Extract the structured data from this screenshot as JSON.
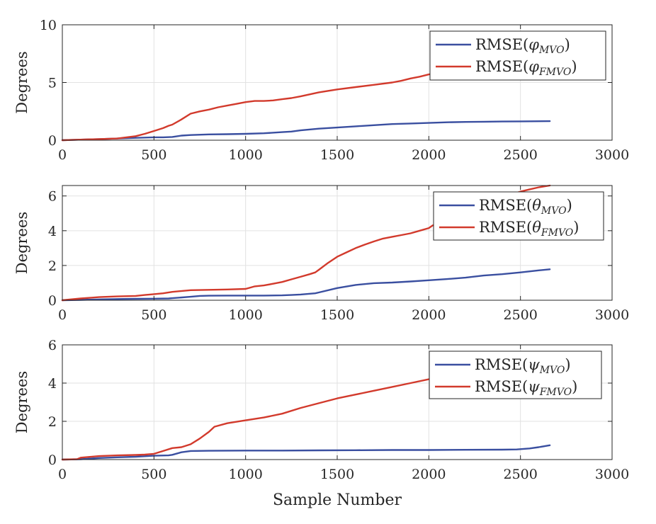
{
  "figure": {
    "xlabel": "Sample Number"
  },
  "chart_data": [
    {
      "type": "line",
      "ylabel": "Degrees",
      "xlim": [
        0,
        3000
      ],
      "ylim": [
        0,
        10
      ],
      "xticks": [
        0,
        500,
        1000,
        1500,
        2000,
        2500,
        3000
      ],
      "yticks": [
        0,
        5,
        10
      ],
      "grid": true,
      "legend_position": "top-right",
      "series": [
        {
          "name": "RMSE(φ_MVO)",
          "legend_prefix": "RMSE(",
          "legend_symbol": "φ",
          "legend_sub": "MVO",
          "legend_suffix": ")",
          "color": "#3a4fa0",
          "x": [
            0,
            100,
            200,
            300,
            400,
            500,
            550,
            600,
            650,
            700,
            800,
            900,
            1000,
            1100,
            1200,
            1250,
            1300,
            1400,
            1500,
            1600,
            1700,
            1800,
            1900,
            2000,
            2100,
            2200,
            2300,
            2400,
            2500,
            2660
          ],
          "y": [
            0,
            0.05,
            0.1,
            0.15,
            0.2,
            0.25,
            0.25,
            0.28,
            0.4,
            0.45,
            0.5,
            0.52,
            0.55,
            0.6,
            0.7,
            0.75,
            0.85,
            1.0,
            1.1,
            1.2,
            1.3,
            1.4,
            1.45,
            1.5,
            1.55,
            1.58,
            1.6,
            1.62,
            1.63,
            1.65
          ]
        },
        {
          "name": "RMSE(φ_FMVO)",
          "legend_prefix": "RMSE(",
          "legend_symbol": "φ",
          "legend_sub": "FMVO",
          "legend_suffix": ")",
          "color": "#d23a2c",
          "x": [
            0,
            100,
            200,
            300,
            350,
            400,
            450,
            500,
            550,
            580,
            600,
            650,
            700,
            750,
            800,
            850,
            900,
            950,
            1000,
            1050,
            1100,
            1150,
            1200,
            1250,
            1300,
            1400,
            1500,
            1600,
            1700,
            1800,
            1850,
            1900,
            1950,
            2000,
            2020
          ],
          "y": [
            0,
            0.05,
            0.1,
            0.15,
            0.25,
            0.35,
            0.55,
            0.8,
            1.05,
            1.25,
            1.35,
            1.8,
            2.3,
            2.5,
            2.65,
            2.85,
            3.0,
            3.15,
            3.3,
            3.4,
            3.4,
            3.45,
            3.55,
            3.65,
            3.8,
            4.15,
            4.4,
            4.6,
            4.8,
            5.0,
            5.15,
            5.35,
            5.5,
            5.7,
            5.75
          ]
        }
      ]
    },
    {
      "type": "line",
      "ylabel": "Degrees",
      "xlim": [
        0,
        3000
      ],
      "ylim": [
        0,
        6.6
      ],
      "xticks": [
        0,
        500,
        1000,
        1500,
        2000,
        2500,
        3000
      ],
      "yticks": [
        0,
        2,
        4,
        6
      ],
      "grid": true,
      "legend_position": "top-right",
      "series": [
        {
          "name": "RMSE(θ_MVO)",
          "legend_prefix": "RMSE(",
          "legend_symbol": "θ",
          "legend_sub": "MVO",
          "legend_suffix": ")",
          "color": "#3a4fa0",
          "x": [
            0,
            100,
            200,
            300,
            400,
            500,
            580,
            600,
            700,
            750,
            800,
            900,
            1000,
            1100,
            1200,
            1250,
            1300,
            1380,
            1400,
            1500,
            1600,
            1700,
            1800,
            1900,
            2000,
            2100,
            2200,
            2300,
            2400,
            2500,
            2600,
            2660
          ],
          "y": [
            0,
            0.02,
            0.05,
            0.07,
            0.08,
            0.09,
            0.1,
            0.12,
            0.2,
            0.25,
            0.26,
            0.27,
            0.27,
            0.27,
            0.28,
            0.3,
            0.33,
            0.4,
            0.45,
            0.7,
            0.88,
            0.98,
            1.02,
            1.08,
            1.15,
            1.22,
            1.3,
            1.42,
            1.5,
            1.6,
            1.72,
            1.78
          ]
        },
        {
          "name": "RMSE(θ_FMVO)",
          "legend_prefix": "RMSE(",
          "legend_symbol": "θ",
          "legend_sub": "FMVO",
          "legend_suffix": ")",
          "color": "#d23a2c",
          "x": [
            0,
            100,
            200,
            300,
            400,
            450,
            500,
            550,
            600,
            700,
            800,
            900,
            1000,
            1050,
            1100,
            1150,
            1200,
            1250,
            1300,
            1350,
            1380,
            1400,
            1450,
            1500,
            1550,
            1600,
            1650,
            1700,
            1750,
            1800,
            1850,
            1900,
            1950,
            2000,
            2020,
            2450,
            2500,
            2550,
            2600,
            2660
          ],
          "y": [
            0,
            0.1,
            0.18,
            0.22,
            0.25,
            0.3,
            0.35,
            0.4,
            0.48,
            0.58,
            0.6,
            0.62,
            0.65,
            0.8,
            0.85,
            0.95,
            1.05,
            1.2,
            1.35,
            1.5,
            1.6,
            1.75,
            2.15,
            2.5,
            2.75,
            3.0,
            3.2,
            3.38,
            3.55,
            3.65,
            3.75,
            3.85,
            4.0,
            4.15,
            4.3,
            6.1,
            6.25,
            6.38,
            6.5,
            6.6
          ]
        }
      ]
    },
    {
      "type": "line",
      "ylabel": "Degrees",
      "xlim": [
        0,
        3000
      ],
      "ylim": [
        0,
        6
      ],
      "xticks": [
        0,
        500,
        1000,
        1500,
        2000,
        2500,
        3000
      ],
      "yticks": [
        0,
        2,
        4,
        6
      ],
      "grid": true,
      "legend_position": "top-right",
      "series": [
        {
          "name": "RMSE(ψ_MVO)",
          "legend_prefix": "RMSE(",
          "legend_symbol": "ψ",
          "legend_sub": "MVO",
          "legend_suffix": ")",
          "color": "#3a4fa0",
          "x": [
            0,
            100,
            200,
            300,
            400,
            500,
            580,
            600,
            650,
            700,
            800,
            1000,
            1200,
            1400,
            1600,
            1800,
            2000,
            2200,
            2400,
            2480,
            2550,
            2600,
            2660
          ],
          "y": [
            0,
            0.02,
            0.08,
            0.12,
            0.15,
            0.2,
            0.22,
            0.25,
            0.38,
            0.45,
            0.46,
            0.47,
            0.47,
            0.48,
            0.49,
            0.5,
            0.5,
            0.51,
            0.52,
            0.53,
            0.58,
            0.65,
            0.75
          ]
        },
        {
          "name": "RMSE(ψ_FMVO)",
          "legend_prefix": "RMSE(",
          "legend_symbol": "ψ",
          "legend_sub": "FMVO",
          "legend_suffix": ")",
          "color": "#d23a2c",
          "x": [
            0,
            80,
            100,
            200,
            300,
            400,
            450,
            500,
            550,
            600,
            650,
            700,
            750,
            800,
            830,
            900,
            1000,
            1100,
            1200,
            1300,
            1400,
            1500,
            1600,
            1700,
            1800,
            1900,
            2000,
            2020
          ],
          "y": [
            0,
            0.02,
            0.1,
            0.18,
            0.22,
            0.24,
            0.26,
            0.3,
            0.45,
            0.6,
            0.65,
            0.8,
            1.1,
            1.45,
            1.72,
            1.9,
            2.05,
            2.2,
            2.4,
            2.7,
            2.95,
            3.2,
            3.4,
            3.6,
            3.8,
            4.0,
            4.2,
            4.25
          ]
        }
      ]
    }
  ]
}
